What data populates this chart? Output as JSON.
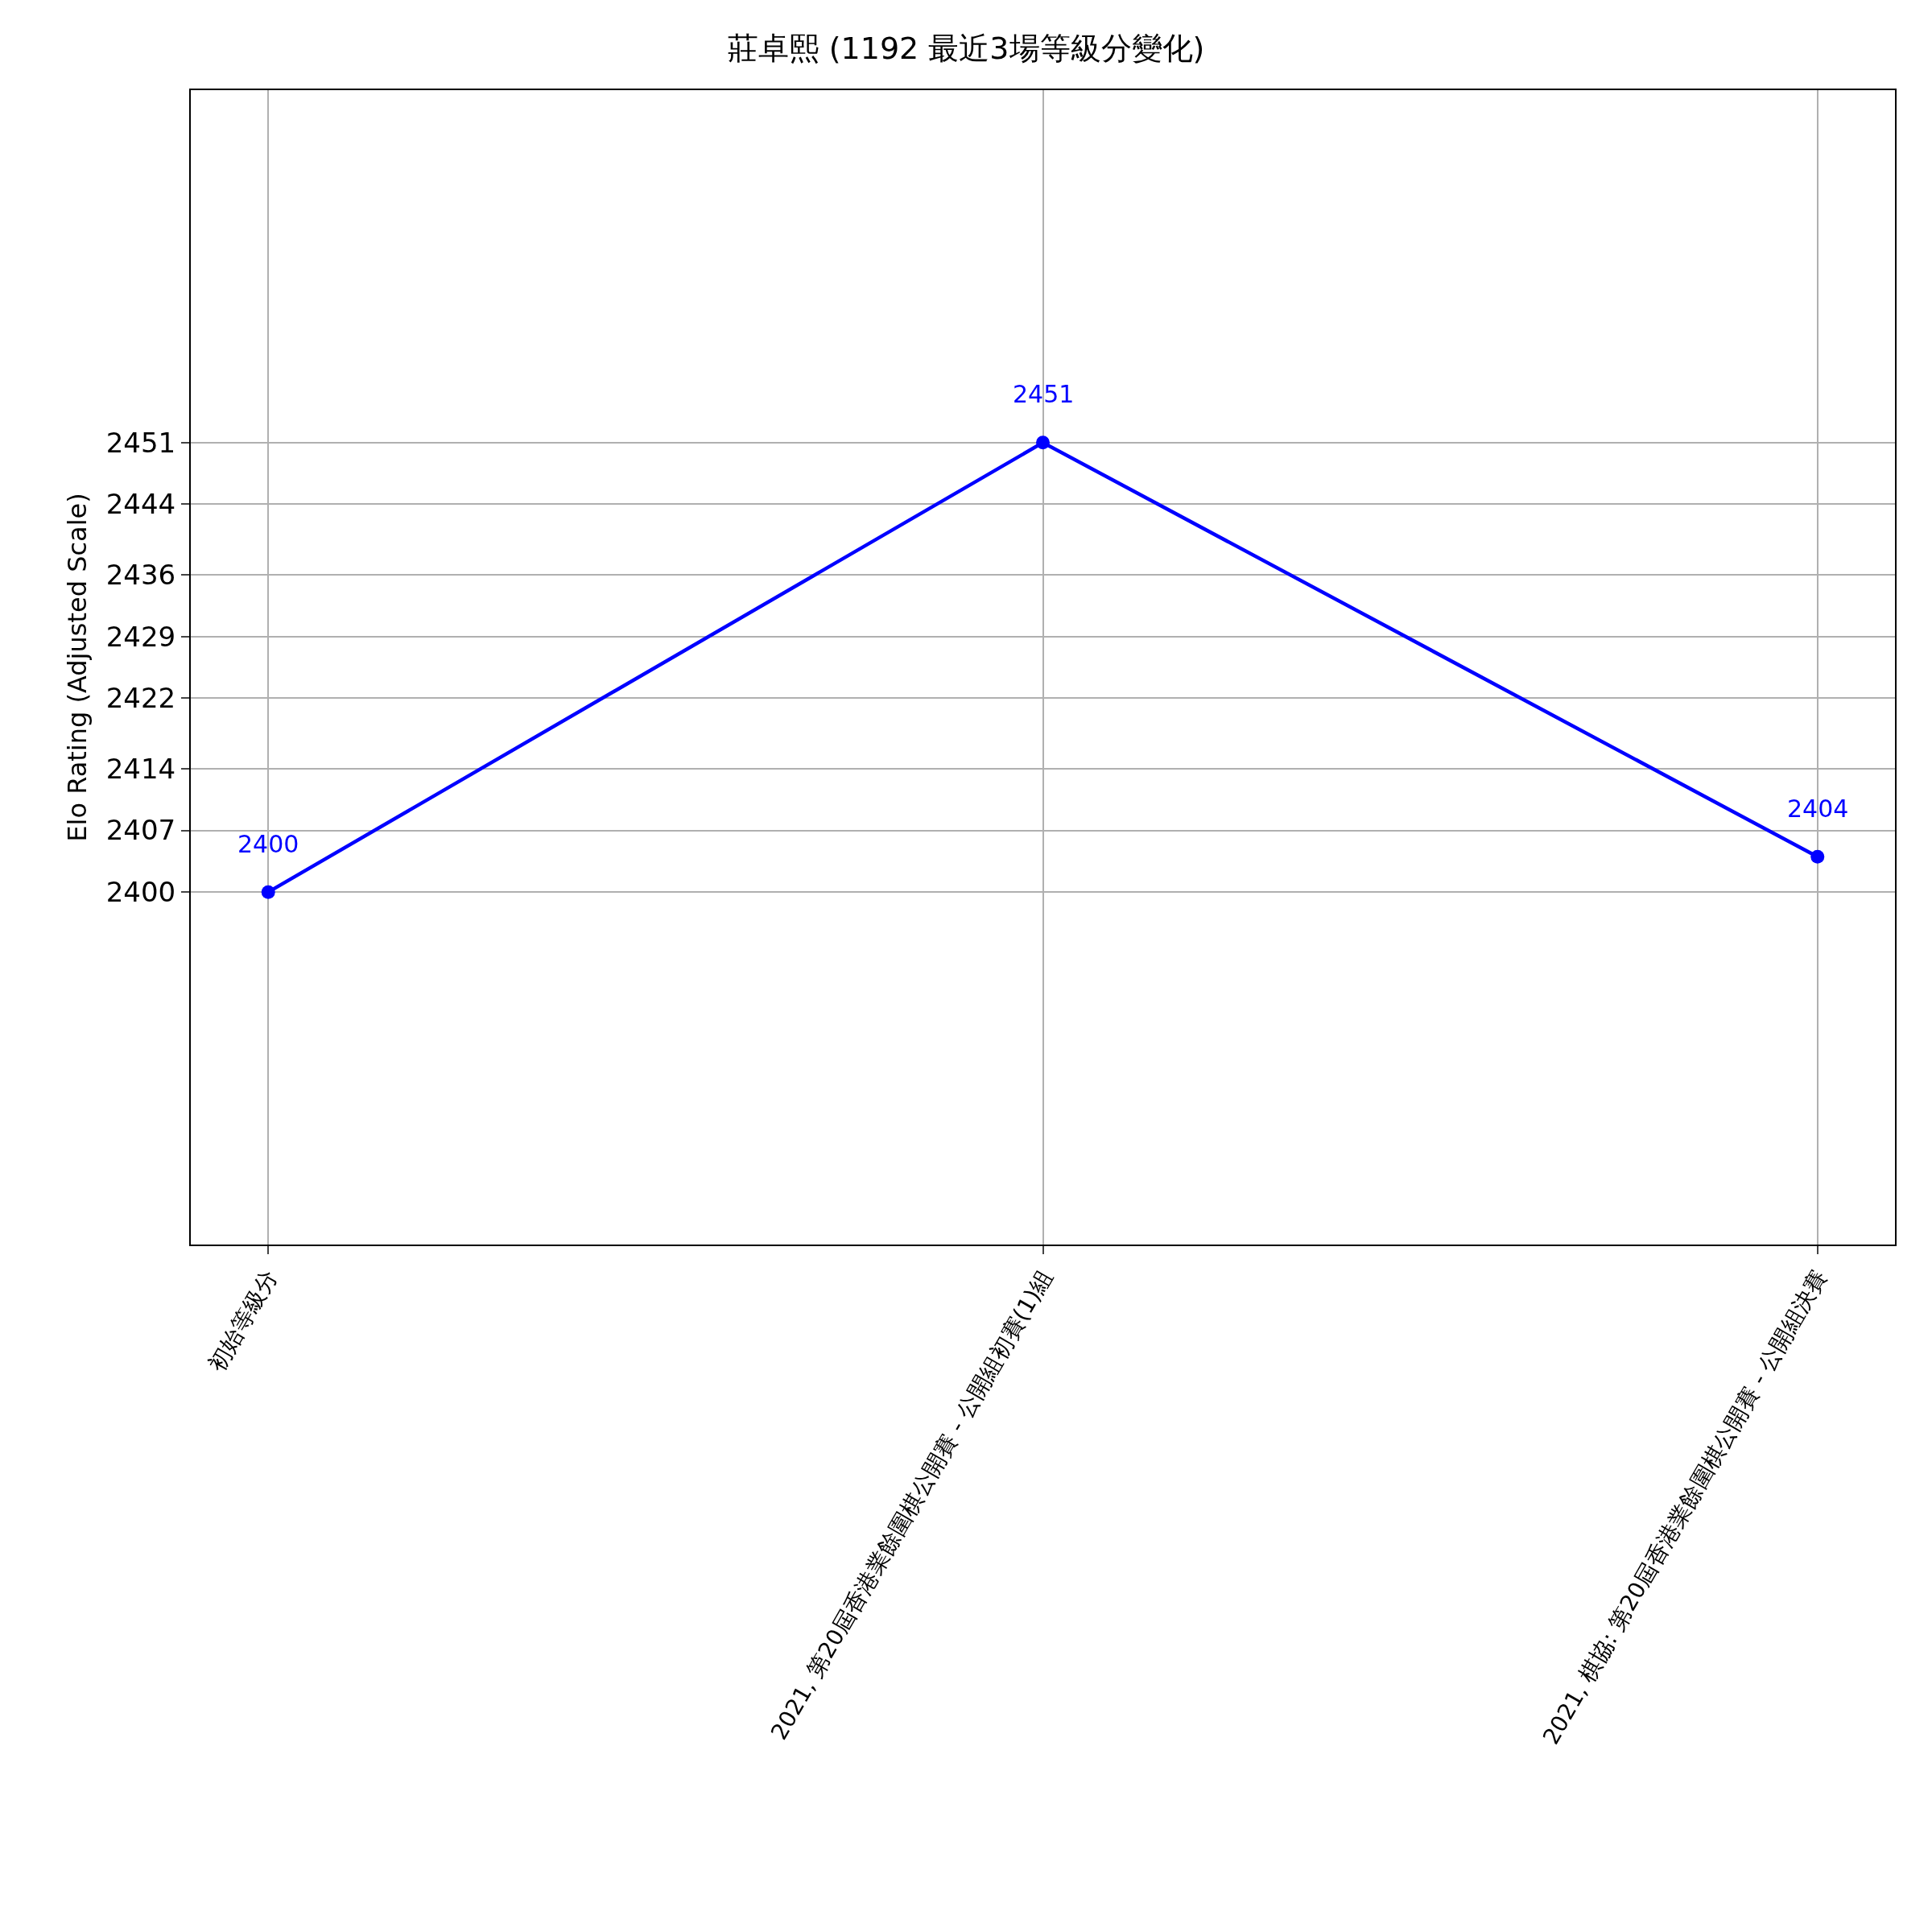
{
  "chart_data": {
    "type": "line",
    "title": "莊卓熙 (1192 最近3場等級分變化)",
    "ylabel": "Elo Rating (Adjusted Scale)",
    "categories": [
      "初始等級分",
      "2021, 第20屆香港業餘圍棋公開賽 - 公開組初賽(1)組",
      "2021, 棋協: 第20屆香港業餘圍棋公開賽 - 公開組決賽"
    ],
    "series": [
      {
        "color": "#0000ff",
        "values": [
          2400,
          2451,
          2404
        ]
      }
    ],
    "ylim": [
      2360,
      2491
    ],
    "yticks": [
      2400,
      2407,
      2414,
      2422,
      2429,
      2436,
      2444,
      2451
    ],
    "data_labels": true,
    "grid": true,
    "marker": "circle",
    "line_style": "solid"
  }
}
